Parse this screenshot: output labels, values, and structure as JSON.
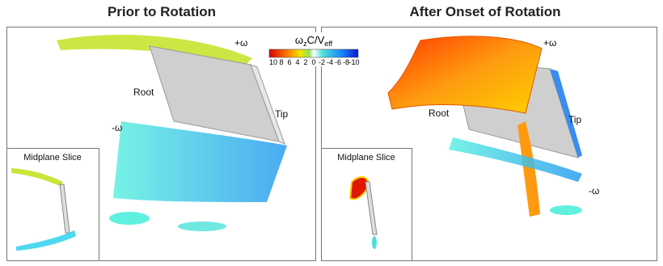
{
  "panels": [
    {
      "title": "Prior to Rotation",
      "labels": {
        "plus_omega": "+ω",
        "root": "Root",
        "tip": "Tip",
        "minus_omega": "-ω"
      },
      "inset": "Midplane Slice"
    },
    {
      "title": "After Onset of Rotation",
      "labels": {
        "plus_omega": "+ω",
        "root": "Root",
        "tip": "Tip",
        "minus_omega": "-ω"
      },
      "inset": "Midplane Slice"
    }
  ],
  "colorbar": {
    "title": [
      "ω",
      "z",
      "C/V",
      "eff"
    ],
    "ticks": [
      "10",
      "8",
      "6",
      "4",
      "2",
      "0",
      "-2",
      "-4",
      "-6",
      "-8",
      "-10"
    ]
  }
}
